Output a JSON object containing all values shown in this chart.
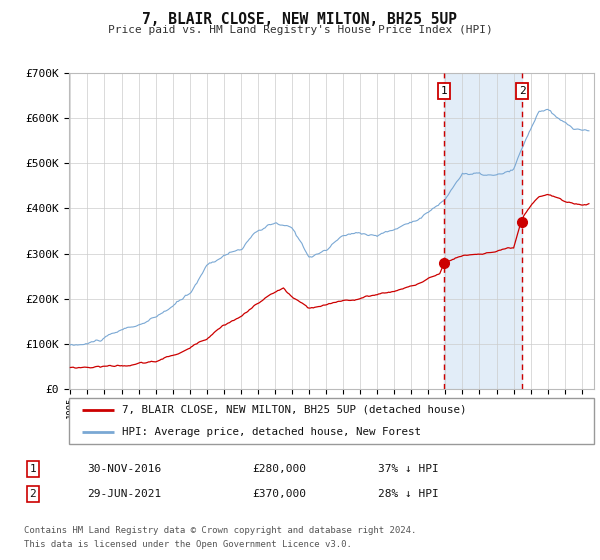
{
  "title": "7, BLAIR CLOSE, NEW MILTON, BH25 5UP",
  "subtitle": "Price paid vs. HM Land Registry's House Price Index (HPI)",
  "hpi_color": "#7aa8d4",
  "price_color": "#cc0000",
  "background_color": "#ffffff",
  "plot_bg": "#ffffff",
  "grid_color": "#cccccc",
  "shade_color": "#ddeaf7",
  "legend_line1": "7, BLAIR CLOSE, NEW MILTON, BH25 5UP (detached house)",
  "legend_line2": "HPI: Average price, detached house, New Forest",
  "footer_line1": "Contains HM Land Registry data © Crown copyright and database right 2024.",
  "footer_line2": "This data is licensed under the Open Government Licence v3.0.",
  "ylim": [
    0,
    700000
  ],
  "yticks": [
    0,
    100000,
    200000,
    300000,
    400000,
    500000,
    600000,
    700000
  ],
  "ytick_labels": [
    "£0",
    "£100K",
    "£200K",
    "£300K",
    "£400K",
    "£500K",
    "£600K",
    "£700K"
  ],
  "ev1_idx": 263,
  "ev2_idx": 318,
  "ev1_price": 280000,
  "ev2_price": 370000,
  "ev1_date": "30-NOV-2016",
  "ev2_date": "29-JUN-2021",
  "ev1_text": "37% ↓ HPI",
  "ev2_text": "28% ↓ HPI"
}
